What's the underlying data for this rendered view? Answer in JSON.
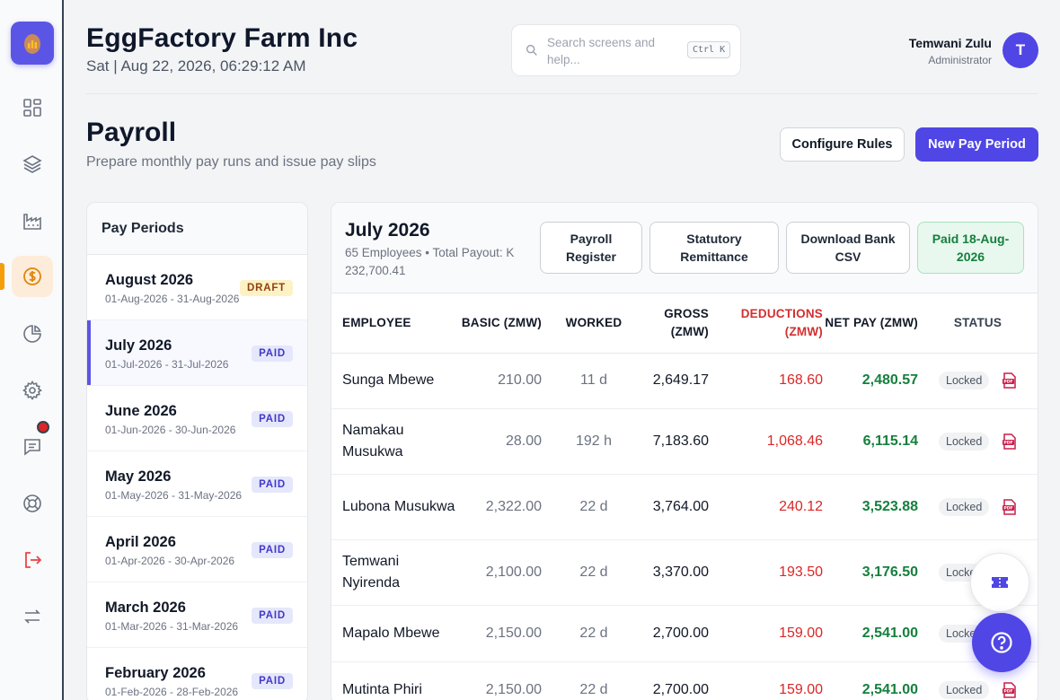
{
  "header": {
    "company": "EggFactory Farm Inc",
    "datetime": "Sat | Aug 22, 2026, 06:29:12 AM",
    "search_placeholder": "Search screens and help...",
    "search_shortcut": "Ctrl K",
    "user_name": "Temwani Zulu",
    "user_role": "Administrator",
    "avatar_initial": "T"
  },
  "sidebar": {
    "items": [
      {
        "icon": "dashboard-grid-icon"
      },
      {
        "icon": "layers-icon"
      },
      {
        "icon": "factory-icon"
      },
      {
        "icon": "payroll-coin-icon",
        "active": true
      },
      {
        "icon": "pie-chart-icon"
      },
      {
        "icon": "settings-gear-icon"
      },
      {
        "icon": "messages-icon",
        "notification": true
      },
      {
        "icon": "support-lifebuoy-icon"
      },
      {
        "icon": "logout-icon"
      },
      {
        "icon": "switch-arrows-icon"
      }
    ],
    "accent": "#f59e0b"
  },
  "page": {
    "title": "Payroll",
    "subtitle": "Prepare monthly pay runs and issue pay slips",
    "configure_label": "Configure Rules",
    "new_period_label": "New Pay Period"
  },
  "periods": {
    "heading": "Pay Periods",
    "items": [
      {
        "name": "August 2026",
        "range": "01-Aug-2026 - 31-Aug-2026",
        "status": "DRAFT"
      },
      {
        "name": "July 2026",
        "range": "01-Jul-2026 - 31-Jul-2026",
        "status": "PAID"
      },
      {
        "name": "June 2026",
        "range": "01-Jun-2026 - 30-Jun-2026",
        "status": "PAID"
      },
      {
        "name": "May 2026",
        "range": "01-May-2026 - 31-May-2026",
        "status": "PAID"
      },
      {
        "name": "April 2026",
        "range": "01-Apr-2026 - 30-Apr-2026",
        "status": "PAID"
      },
      {
        "name": "March 2026",
        "range": "01-Mar-2026 - 31-Mar-2026",
        "status": "PAID"
      },
      {
        "name": "February 2026",
        "range": "01-Feb-2026 - 28-Feb-2026",
        "status": "PAID"
      }
    ]
  },
  "detail": {
    "month": "July 2026",
    "summary": "65 Employees • Total Payout: K 232,700.41",
    "buttons": {
      "register": "Payroll Register",
      "remittance": "Statutory Remittance",
      "bank_csv": "Download Bank CSV",
      "paid": "Paid 18-Aug-2026"
    },
    "columns": {
      "employee": "EMPLOYEE",
      "basic": "BASIC (ZMW)",
      "worked": "WORKED",
      "gross": "GROSS (ZMW)",
      "deductions": "DEDUCTIONS (ZMW)",
      "net": "NET PAY (ZMW)",
      "status": "STATUS"
    },
    "rows": [
      {
        "employee": "Sunga Mbewe",
        "basic": "210.00",
        "worked": "11 d",
        "gross": "2,649.17",
        "deductions": "168.60",
        "net": "2,480.57",
        "status": "Locked"
      },
      {
        "employee": "Namakau Musukwa",
        "basic": "28.00",
        "worked": "192 h",
        "gross": "7,183.60",
        "deductions": "1,068.46",
        "net": "6,115.14",
        "status": "Locked"
      },
      {
        "employee": "Lubona Musukwa",
        "basic": "2,322.00",
        "worked": "22 d",
        "gross": "3,764.00",
        "deductions": "240.12",
        "net": "3,523.88",
        "status": "Locked"
      },
      {
        "employee": "Temwani Nyirenda",
        "basic": "2,100.00",
        "worked": "22 d",
        "gross": "3,370.00",
        "deductions": "193.50",
        "net": "3,176.50",
        "status": "Locke"
      },
      {
        "employee": "Mapalo Mbewe",
        "basic": "2,150.00",
        "worked": "22 d",
        "gross": "2,700.00",
        "deductions": "159.00",
        "net": "2,541.00",
        "status": "Locke"
      },
      {
        "employee": "Mutinta Phiri",
        "basic": "2,150.00",
        "worked": "22 d",
        "gross": "2,700.00",
        "deductions": "159.00",
        "net": "2,541.00",
        "status": "Locked"
      }
    ]
  },
  "colors": {
    "primary": "#4f46e5",
    "deduction": "#dc2626",
    "net_pay": "#15803d",
    "draft_badge": "#fdf2c6",
    "paid_badge": "#e5e7fb"
  }
}
